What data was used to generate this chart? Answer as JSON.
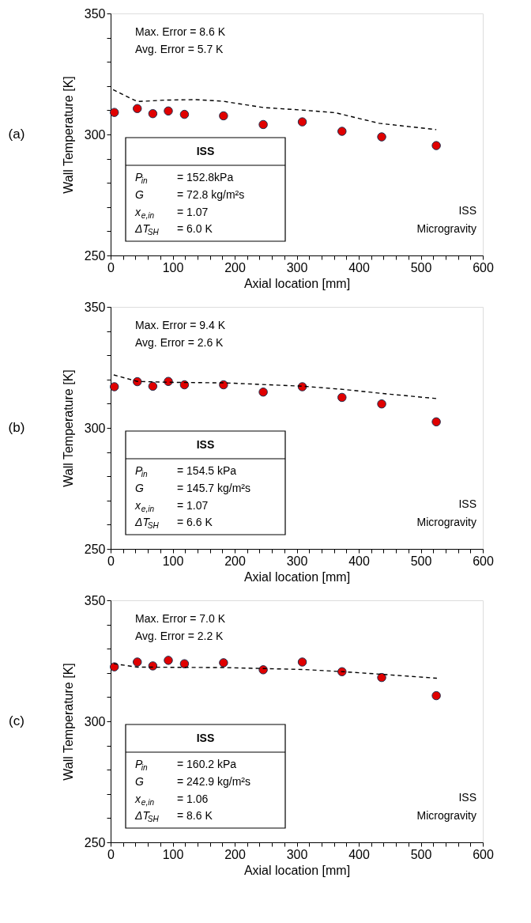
{
  "chart_data": [
    {
      "type": "scatter",
      "xlabel": "Axial location [mm]",
      "ylabel": "Wall Temperature [K]",
      "xlim": [
        0,
        600
      ],
      "ylim": [
        250,
        350
      ],
      "xticks": [
        0,
        {
          "value": 20,
          "label": null
        },
        {
          "value": 40,
          "label": null
        },
        {
          "value": 60,
          "label": null
        },
        {
          "value": 80,
          "label": null
        },
        100,
        {
          "value": 120,
          "label": null
        },
        {
          "value": 140,
          "label": null
        },
        {
          "value": 160,
          "label": null
        },
        {
          "value": 180,
          "label": null
        },
        200,
        {
          "value": 220,
          "label": null
        },
        {
          "value": 240,
          "label": null
        },
        {
          "value": 260,
          "label": null
        },
        {
          "value": 280,
          "label": null
        },
        300,
        {
          "value": 320,
          "label": null
        },
        {
          "value": 340,
          "label": null
        },
        {
          "value": 360,
          "label": null
        },
        {
          "value": 380,
          "label": null
        },
        400,
        {
          "value": 420,
          "label": null
        },
        {
          "value": 440,
          "label": null
        },
        {
          "value": 460,
          "label": null
        },
        {
          "value": 480,
          "label": null
        },
        500,
        {
          "value": 520,
          "label": null
        },
        {
          "value": 540,
          "label": null
        },
        {
          "value": 560,
          "label": null
        },
        {
          "value": 580,
          "label": null
        },
        600
      ],
      "yticks": [
        250,
        {
          "value": 260,
          "label": null
        },
        {
          "value": 270,
          "label": null
        },
        {
          "value": 280,
          "label": null
        },
        {
          "value": 290,
          "label": null
        },
        300,
        {
          "value": 310,
          "label": null
        },
        {
          "value": 320,
          "label": null
        },
        {
          "value": 330,
          "label": null
        },
        {
          "value": 340,
          "label": null
        },
        350
      ],
      "series": [
        {
          "marker": "circle",
          "color": "#e00000",
          "x": [
            6,
            43,
            68,
            93,
            119,
            182,
            246,
            309,
            373,
            437,
            525
          ],
          "values": [
            309.1,
            310.7,
            308.6,
            309.7,
            308.3,
            307.7,
            304.1,
            305.2,
            301.3,
            299.0,
            295.4
          ]
        },
        {
          "type": "line",
          "color": "#000000",
          "line_style": "dashed",
          "x": [
            4,
            43,
            89,
            138,
            182,
            247,
            307,
            362,
            433,
            525
          ],
          "values": [
            318.5,
            313.6,
            314.2,
            314.4,
            313.7,
            311.1,
            310.1,
            309.0,
            304.6,
            302.0
          ]
        }
      ],
      "annotations": [
        "(a)",
        "Max. Error = 8.6 K",
        "Avg. Error = 5.7 K",
        "ISS",
        "P$_{in}$ = 152.8kPa",
        "G = 72.8 kg/m²s",
        "x$_{e,in}$ = 1.07",
        "ΔT$_{SH}$ = 6.0 K",
        "ISS",
        "Microgravity"
      ]
    },
    {
      "type": "scatter",
      "xlabel": "Axial location [mm]",
      "ylabel": "Wall Temperature [K]",
      "xlim": [
        0,
        600
      ],
      "ylim": [
        250,
        350
      ],
      "xticks": [
        0,
        {
          "value": 20,
          "label": null
        },
        {
          "value": 40,
          "label": null
        },
        {
          "value": 60,
          "label": null
        },
        {
          "value": 80,
          "label": null
        },
        100,
        {
          "value": 120,
          "label": null
        },
        {
          "value": 140,
          "label": null
        },
        {
          "value": 160,
          "label": null
        },
        {
          "value": 180,
          "label": null
        },
        200,
        {
          "value": 220,
          "label": null
        },
        {
          "value": 240,
          "label": null
        },
        {
          "value": 260,
          "label": null
        },
        {
          "value": 280,
          "label": null
        },
        300,
        {
          "value": 320,
          "label": null
        },
        {
          "value": 340,
          "label": null
        },
        {
          "value": 360,
          "label": null
        },
        {
          "value": 380,
          "label": null
        },
        400,
        {
          "value": 420,
          "label": null
        },
        {
          "value": 440,
          "label": null
        },
        {
          "value": 460,
          "label": null
        },
        {
          "value": 480,
          "label": null
        },
        500,
        {
          "value": 520,
          "label": null
        },
        {
          "value": 540,
          "label": null
        },
        {
          "value": 560,
          "label": null
        },
        {
          "value": 580,
          "label": null
        },
        600
      ],
      "yticks": [
        250,
        {
          "value": 260,
          "label": null
        },
        {
          "value": 270,
          "label": null
        },
        {
          "value": 280,
          "label": null
        },
        {
          "value": 290,
          "label": null
        },
        300,
        {
          "value": 310,
          "label": null
        },
        {
          "value": 320,
          "label": null
        },
        {
          "value": 330,
          "label": null
        },
        {
          "value": 340,
          "label": null
        },
        350
      ],
      "series": [
        {
          "marker": "circle",
          "color": "#e00000",
          "x": [
            6,
            43,
            68,
            93,
            119,
            182,
            246,
            309,
            373,
            437,
            525
          ],
          "values": [
            317.0,
            319.1,
            317.2,
            319.2,
            317.8,
            317.8,
            314.8,
            317.0,
            312.6,
            309.9,
            302.5
          ]
        },
        {
          "type": "line",
          "color": "#000000",
          "line_style": "dashed",
          "x": [
            5,
            43,
            103,
            184,
            311,
            375,
            439,
            526
          ],
          "values": [
            321.9,
            319.2,
            318.8,
            318.6,
            317.2,
            315.9,
            314.2,
            312.1
          ]
        }
      ],
      "annotations": [
        "(b)",
        "Max. Error = 9.4 K",
        "Avg. Error = 2.6 K",
        "ISS",
        "P$_{in}$ = 154.5 kPa",
        "G = 145.7 kg/m²s",
        "x$_{e,in}$ = 1.07",
        "ΔT$_{SH}$ = 6.6 K",
        "ISS",
        "Microgravity"
      ]
    },
    {
      "type": "scatter",
      "xlabel": "Axial location [mm]",
      "ylabel": "Wall Temperature [K]",
      "xlim": [
        0,
        600
      ],
      "ylim": [
        250,
        350
      ],
      "xticks": [
        0,
        {
          "value": 20,
          "label": null
        },
        {
          "value": 40,
          "label": null
        },
        {
          "value": 60,
          "label": null
        },
        {
          "value": 80,
          "label": null
        },
        100,
        {
          "value": 120,
          "label": null
        },
        {
          "value": 140,
          "label": null
        },
        {
          "value": 160,
          "label": null
        },
        {
          "value": 180,
          "label": null
        },
        200,
        {
          "value": 220,
          "label": null
        },
        {
          "value": 240,
          "label": null
        },
        {
          "value": 260,
          "label": null
        },
        {
          "value": 280,
          "label": null
        },
        300,
        {
          "value": 320,
          "label": null
        },
        {
          "value": 340,
          "label": null
        },
        {
          "value": 360,
          "label": null
        },
        {
          "value": 380,
          "label": null
        },
        400,
        {
          "value": 420,
          "label": null
        },
        {
          "value": 440,
          "label": null
        },
        {
          "value": 460,
          "label": null
        },
        {
          "value": 480,
          "label": null
        },
        500,
        {
          "value": 520,
          "label": null
        },
        {
          "value": 540,
          "label": null
        },
        {
          "value": 560,
          "label": null
        },
        {
          "value": 580,
          "label": null
        },
        600
      ],
      "yticks": [
        250,
        {
          "value": 260,
          "label": null
        },
        {
          "value": 270,
          "label": null
        },
        {
          "value": 280,
          "label": null
        },
        {
          "value": 290,
          "label": null
        },
        300,
        {
          "value": 310,
          "label": null
        },
        {
          "value": 320,
          "label": null
        },
        {
          "value": 330,
          "label": null
        },
        {
          "value": 340,
          "label": null
        },
        350
      ],
      "series": [
        {
          "marker": "circle",
          "color": "#e00000",
          "x": [
            6,
            43,
            68,
            93,
            119,
            182,
            246,
            309,
            373,
            437,
            525
          ],
          "values": [
            322.5,
            324.5,
            322.9,
            325.2,
            323.8,
            324.2,
            321.3,
            324.5,
            320.5,
            318.1,
            310.6
          ]
        },
        {
          "type": "line",
          "color": "#000000",
          "line_style": "dashed",
          "x": [
            5,
            43,
            184,
            311,
            375,
            439,
            526
          ],
          "values": [
            323.8,
            322.4,
            322.2,
            321.4,
            320.5,
            319.4,
            317.8
          ]
        }
      ],
      "annotations": [
        "(c)",
        "Max. Error = 7.0 K",
        "Avg. Error = 2.2 K",
        "ISS",
        "P$_{in}$ = 160.2 kPa",
        "G = 242.9 kg/m²s",
        "x$_{e,in}$ = 1.06",
        "ΔT$_{SH}$ = 8.6 K",
        "ISS",
        "Microgravity"
      ]
    }
  ]
}
